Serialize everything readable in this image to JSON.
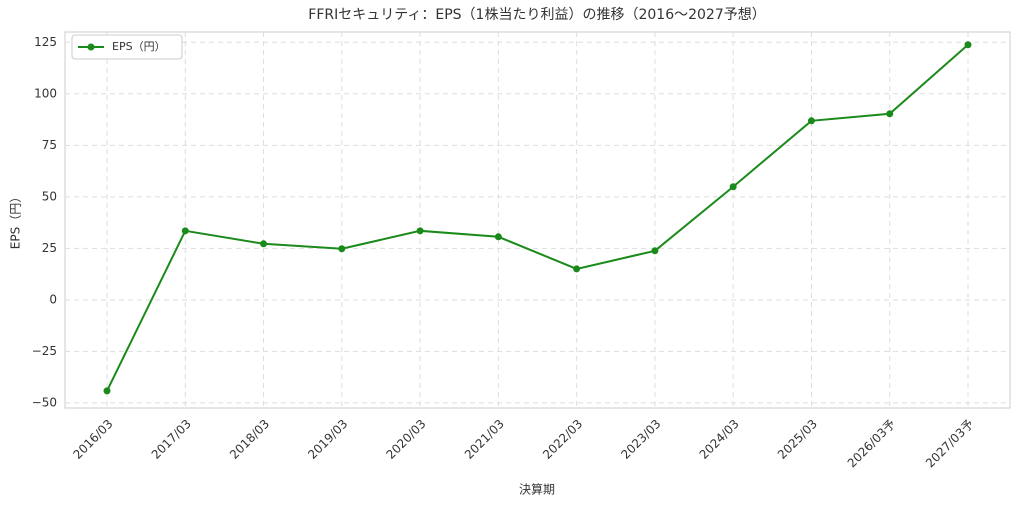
{
  "chart_data": {
    "type": "line",
    "title": "FFRIセキュリティ：EPS（1株当たり利益）の推移（2016〜2027予想）",
    "x_label": "決算期",
    "y_label": "EPS（円）",
    "categories": [
      "2016/03",
      "2017/03",
      "2018/03",
      "2019/03",
      "2020/03",
      "2021/03",
      "2022/03",
      "2023/03",
      "2024/03",
      "2025/03",
      "2026/03予",
      "2027/03予"
    ],
    "series": [
      {
        "name": "EPS（円）",
        "color": "#1a8a1a",
        "values": [
          -44.2,
          33.5,
          27.2,
          24.8,
          33.5,
          30.6,
          15.0,
          23.8,
          54.9,
          86.9,
          90.3,
          123.8
        ]
      }
    ],
    "ylim": [
      -52.5,
      130
    ],
    "yticks": [
      {
        "value": -50,
        "label": "−50"
      },
      {
        "value": -25,
        "label": "−25"
      },
      0,
      25,
      50,
      75,
      100,
      125
    ],
    "grid": true,
    "legend": "upper left"
  }
}
